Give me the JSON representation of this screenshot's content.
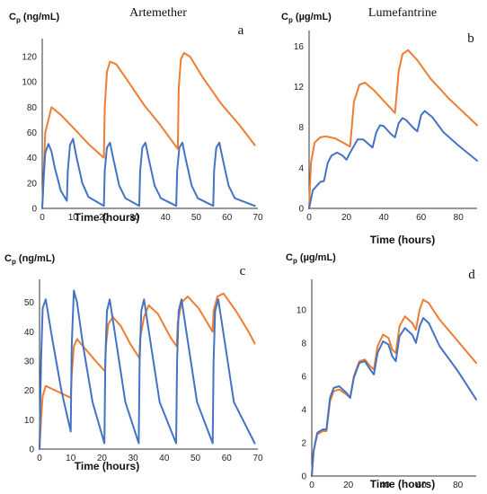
{
  "chart_data": [
    {
      "type": "line",
      "panel_label": "a",
      "title": "Artemether",
      "ylabel": "Cp (ng/mL)",
      "ylabel_main": "C",
      "ylabel_sub": "p",
      "ylabel_unit": " (ng/mL)",
      "xlabel": "Time (hours)",
      "xlim": [
        0,
        70
      ],
      "ylim": [
        0,
        130
      ],
      "x_ticks": [
        0,
        10,
        20,
        30,
        40,
        50,
        60,
        70
      ],
      "y_ticks": [
        0,
        20,
        40,
        60,
        80,
        100,
        120
      ],
      "colors": {
        "blue": "#4472C4",
        "orange": "#ED7D31"
      },
      "series": [
        {
          "color": "orange",
          "x": [
            0,
            1,
            3,
            6,
            10,
            15,
            20,
            20.3,
            21,
            22,
            24,
            28,
            33,
            38,
            44,
            44.3,
            45,
            46,
            48,
            52,
            58,
            64,
            69
          ],
          "y": [
            0,
            60,
            80,
            74,
            64,
            51,
            40,
            80,
            108,
            116,
            114,
            100,
            82,
            67,
            47,
            95,
            118,
            123,
            120,
            104,
            83,
            66,
            50
          ]
        },
        {
          "color": "blue",
          "x": [
            0,
            0.5,
            1,
            2,
            3,
            4,
            6,
            8,
            8.3,
            9,
            10,
            11,
            13,
            15,
            20,
            20.3,
            21,
            22,
            23,
            25,
            27,
            31.5,
            31.8,
            32.5,
            33.5,
            34.5,
            36.5,
            38.5,
            43.5,
            43.8,
            44.5,
            45.5,
            46.5,
            48.5,
            50.5,
            55.5,
            55.8,
            56.5,
            57.5,
            58.5,
            60.5,
            62.5,
            69
          ],
          "y": [
            0,
            25,
            44,
            51,
            45,
            33,
            14,
            6,
            30,
            50,
            55,
            42,
            20,
            9,
            2,
            30,
            48,
            52,
            40,
            18,
            8,
            2,
            30,
            48,
            52,
            40,
            18,
            8,
            2,
            30,
            48,
            52,
            40,
            18,
            8,
            2,
            30,
            48,
            52,
            40,
            18,
            8,
            2
          ]
        }
      ]
    },
    {
      "type": "line",
      "panel_label": "b",
      "title": "Lumefantrine",
      "ylabel": "Cp (µg/mL)",
      "ylabel_main": "C",
      "ylabel_sub": "p",
      "ylabel_unit": " (µg/mL)",
      "xlabel": "Time (hours)",
      "xlim": [
        0,
        90
      ],
      "ylim": [
        0,
        17
      ],
      "x_ticks": [
        0,
        20,
        40,
        60,
        80
      ],
      "y_ticks": [
        0,
        4,
        8,
        12,
        16
      ],
      "colors": {
        "blue": "#4472C4",
        "orange": "#ED7D31"
      },
      "series": [
        {
          "color": "orange",
          "x": [
            0,
            1,
            3,
            6,
            9,
            14,
            22,
            24,
            27,
            30,
            35,
            40,
            46,
            48,
            50,
            53,
            58,
            65,
            75,
            90
          ],
          "y": [
            0,
            4.5,
            6.5,
            7.0,
            7.1,
            6.9,
            6.1,
            10.5,
            12.2,
            12.4,
            11.6,
            10.6,
            9.4,
            13.5,
            15.2,
            15.6,
            14.6,
            12.8,
            10.8,
            8.2
          ]
        },
        {
          "color": "blue",
          "x": [
            0,
            2,
            6,
            8,
            10,
            12,
            15,
            18,
            20,
            22,
            26,
            29,
            32,
            34,
            36,
            38,
            40,
            44,
            46,
            48,
            50,
            52,
            56,
            58,
            60,
            62,
            66,
            72,
            80,
            90
          ],
          "y": [
            0,
            1.8,
            2.6,
            2.7,
            4.5,
            5.2,
            5.5,
            5.2,
            4.8,
            5.5,
            6.8,
            6.8,
            6.3,
            6.0,
            7.5,
            8.2,
            8.1,
            7.3,
            7.0,
            8.4,
            8.9,
            8.7,
            7.9,
            7.6,
            9.2,
            9.6,
            9.0,
            7.5,
            6.2,
            4.7
          ]
        }
      ]
    },
    {
      "type": "line",
      "panel_label": "c",
      "title": "",
      "ylabel": "Cp (ng/mL)",
      "ylabel_main": "C",
      "ylabel_sub": "p",
      "ylabel_unit": " (ng/mL)",
      "xlabel": "Time (hours)",
      "xlim": [
        0,
        70
      ],
      "ylim": [
        0,
        56
      ],
      "x_ticks": [
        0,
        10,
        20,
        30,
        40,
        50,
        60,
        70
      ],
      "y_ticks": [
        0,
        10,
        20,
        30,
        40,
        50
      ],
      "colors": {
        "blue": "#4472C4",
        "orange": "#ED7D31"
      },
      "series": [
        {
          "color": "orange",
          "x": [
            0,
            0.5,
            1,
            2,
            4,
            7,
            10,
            10.3,
            11,
            12,
            14,
            18,
            21,
            21.3,
            22,
            23.5,
            26,
            29,
            32,
            32.3,
            33.5,
            35,
            38,
            42,
            44,
            44.3,
            45.5,
            47.5,
            51,
            55.5,
            55.8,
            57,
            59,
            63,
            67,
            69
          ],
          "y": [
            0,
            10,
            18,
            21.5,
            20.5,
            19,
            17.5,
            25,
            35,
            37.5,
            35,
            30,
            26.5,
            35,
            42.5,
            45,
            42,
            36,
            31,
            38,
            45,
            49,
            46,
            38,
            35,
            43,
            50,
            52,
            48,
            40,
            47,
            52,
            53,
            47,
            40,
            36
          ]
        },
        {
          "color": "blue",
          "x": [
            0,
            0.5,
            1,
            2,
            4,
            7,
            10,
            10.3,
            11,
            12,
            14,
            17,
            20.8,
            21.1,
            21.6,
            22.5,
            24.5,
            27.5,
            31.8,
            32.1,
            32.6,
            33.5,
            35.5,
            38.5,
            43.8,
            44.1,
            44.6,
            45.5,
            47.5,
            50.5,
            55.5,
            55.8,
            56.3,
            57.3,
            59.3,
            62.3,
            69
          ],
          "y": [
            0,
            30,
            48,
            51,
            38,
            20,
            6,
            35,
            54,
            50,
            35,
            16,
            2,
            30,
            47,
            51,
            37,
            16,
            2,
            30,
            47,
            51,
            37,
            16,
            2,
            30,
            47,
            51,
            37,
            16,
            2,
            30,
            47,
            51,
            37,
            16,
            2
          ]
        }
      ]
    },
    {
      "type": "line",
      "panel_label": "d",
      "title": "",
      "ylabel": "Cp (µg/mL)",
      "ylabel_main": "C",
      "ylabel_sub": "p",
      "ylabel_unit": " (µg/mL)",
      "xlabel": "Time (hours)",
      "xlim": [
        0,
        90
      ],
      "ylim": [
        0,
        11.5
      ],
      "x_ticks": [
        0,
        20,
        40,
        60,
        80
      ],
      "y_ticks": [
        0,
        2,
        4,
        6,
        8,
        10
      ],
      "colors": {
        "blue": "#4472C4",
        "orange": "#ED7D31"
      },
      "series": [
        {
          "color": "orange",
          "x": [
            0,
            1,
            3,
            6,
            8,
            10,
            12,
            15,
            19,
            21,
            23,
            26,
            29,
            32,
            34,
            36,
            39,
            42,
            44,
            46,
            48,
            51,
            55,
            57,
            59,
            61,
            64,
            70,
            80,
            90
          ],
          "y": [
            0,
            1.5,
            2.5,
            2.7,
            2.7,
            4.5,
            5.1,
            5.2,
            4.9,
            4.7,
            6.0,
            6.9,
            7.0,
            6.6,
            6.4,
            7.8,
            8.5,
            8.3,
            7.6,
            7.4,
            9.0,
            9.6,
            9.2,
            8.8,
            10.0,
            10.6,
            10.4,
            9.4,
            8.1,
            6.8
          ]
        },
        {
          "color": "blue",
          "x": [
            0,
            1,
            3,
            6,
            8,
            10,
            12,
            15,
            19,
            21,
            23,
            26,
            29,
            32,
            34,
            36,
            39,
            42,
            44,
            46,
            48,
            51,
            55,
            57,
            59,
            61,
            64,
            70,
            80,
            90
          ],
          "y": [
            0,
            1.5,
            2.6,
            2.8,
            2.8,
            4.7,
            5.3,
            5.4,
            5.0,
            4.7,
            5.9,
            6.8,
            6.9,
            6.4,
            6.1,
            7.4,
            8.1,
            7.9,
            7.2,
            6.9,
            8.4,
            8.9,
            8.5,
            8.0,
            9.0,
            9.5,
            9.2,
            7.8,
            6.3,
            4.6
          ]
        }
      ]
    }
  ]
}
